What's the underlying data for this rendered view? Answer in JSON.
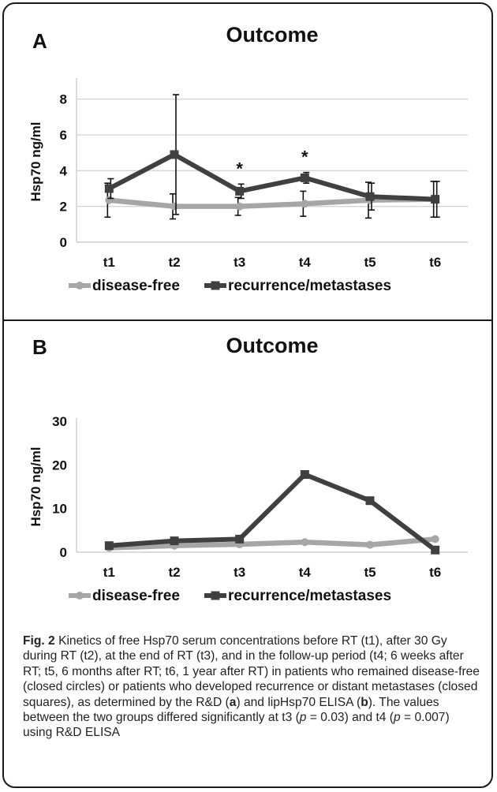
{
  "chart_data": [
    {
      "type": "line",
      "panel_label": "A",
      "title": "Outcome",
      "ylabel": "Hsp70 ng/ml",
      "xlabel": "",
      "categories": [
        "t1",
        "t2",
        "t3",
        "t4",
        "t5",
        "t6"
      ],
      "ylim": [
        0,
        9
      ],
      "yticks": [
        0,
        2,
        4,
        6,
        8
      ],
      "grid": true,
      "legend_position": "bottom",
      "series": [
        {
          "name": "disease-free",
          "color": "#a6a6a6",
          "marker": "circle",
          "values": [
            2.35,
            2.0,
            2.0,
            2.15,
            2.35,
            2.4
          ],
          "error": [
            0.95,
            0.7,
            0.5,
            0.7,
            1.0,
            1.0
          ]
        },
        {
          "name": "recurrence/metastases",
          "color": "#404040",
          "marker": "square",
          "values": [
            3.0,
            4.9,
            2.85,
            3.6,
            2.55,
            2.4
          ],
          "error": [
            0.55,
            3.35,
            0.4,
            0.3,
            0.75,
            1.0
          ]
        }
      ],
      "annotations": [
        {
          "text": "*",
          "category": "t3"
        },
        {
          "text": "*",
          "category": "t4"
        }
      ]
    },
    {
      "type": "line",
      "panel_label": "B",
      "title": "Outcome",
      "ylabel": "Hsp70 ng/ml",
      "xlabel": "",
      "categories": [
        "t1",
        "t2",
        "t3",
        "t4",
        "t5",
        "t6"
      ],
      "ylim": [
        0,
        30
      ],
      "yticks": [
        0,
        10,
        20,
        30
      ],
      "grid": false,
      "legend_position": "bottom",
      "series": [
        {
          "name": "disease-free",
          "color": "#a6a6a6",
          "marker": "circle",
          "values": [
            1.0,
            1.5,
            1.8,
            2.3,
            1.7,
            3.0
          ]
        },
        {
          "name": "recurrence/metastases",
          "color": "#404040",
          "marker": "square",
          "values": [
            1.5,
            2.6,
            3.0,
            17.8,
            11.8,
            0.5
          ]
        }
      ]
    }
  ],
  "caption": {
    "fig_label": "Fig. 2",
    "parts": [
      {
        "t": " Kinetics of free Hsp70 serum concentrations before RT (t1), after 30 Gy during RT (t2), at the end of RT (t3), and in the follow-up period (t4; 6 weeks after RT; t5, 6 months after RT; t6, 1 year after RT) in patients who remained disease-free (closed circles) or patients who developed recurrence or distant metastases (closed squares), as determined by the R&D ("
      },
      {
        "t": "a",
        "b": true
      },
      {
        "t": ") and lipHsp70 ELISA ("
      },
      {
        "t": "b",
        "b": true
      },
      {
        "t": "). The values between the two groups differed significantly at t3 ("
      },
      {
        "t": "p",
        "i": true
      },
      {
        "t": " = 0.03) and t4 ("
      },
      {
        "t": "p",
        "i": true
      },
      {
        "t": " = 0.007) using R&D ELISA"
      }
    ]
  }
}
